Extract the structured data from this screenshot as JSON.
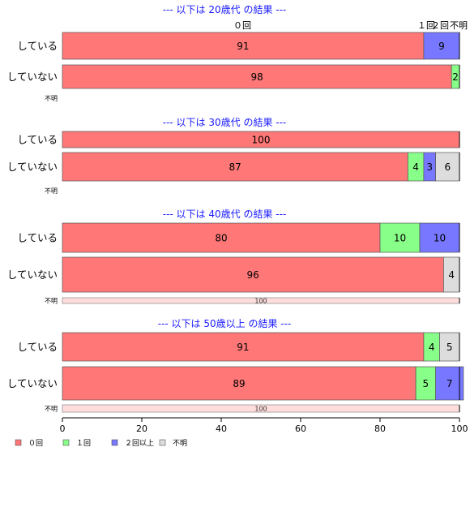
{
  "chart_data": {
    "type": "bar",
    "orientation": "horizontal",
    "stacked": true,
    "xlim": [
      0,
      100
    ],
    "x_ticks": [
      "0",
      "20",
      "40",
      "60",
      "80",
      "100"
    ],
    "legend": {
      "placement": "bottom-left",
      "items": [
        {
          "label": "０回",
          "color": "#ff7777"
        },
        {
          "label": "１回",
          "color": "#88ff88"
        },
        {
          "label": "２回以上",
          "color": "#7777ff"
        },
        {
          "label": "不明",
          "color": "#dddddd"
        }
      ]
    },
    "top_labels": [
      "０回",
      "１回",
      "２回以上",
      "不明"
    ],
    "top_labels_display": [
      "０回",
      "１回",
      "２回",
      "不明"
    ],
    "panels": [
      {
        "title": "--- 以下は 20歳代 の結果 ---",
        "rows": [
          {
            "label": "している",
            "values": [
              91,
              0,
              9,
              0
            ],
            "labels": [
              "91",
              "",
              "9",
              ""
            ]
          },
          {
            "label": "していない",
            "values": [
              98,
              2,
              0,
              0
            ],
            "labels": [
              "98",
              "2",
              "",
              ""
            ]
          },
          {
            "label": "不明",
            "small": true,
            "values": [],
            "labels": []
          }
        ]
      },
      {
        "title": "--- 以下は 30歳代 の結果 ---",
        "rows": [
          {
            "label": "している",
            "values": [
              100,
              0,
              0,
              0
            ],
            "labels": [
              "100",
              "",
              "",
              ""
            ]
          },
          {
            "label": "していない",
            "values": [
              87,
              4,
              3,
              6
            ],
            "labels": [
              "87",
              "4",
              "3",
              "6"
            ]
          },
          {
            "label": "不明",
            "small": true,
            "values": [],
            "labels": []
          }
        ]
      },
      {
        "title": "--- 以下は 40歳代 の結果 ---",
        "rows": [
          {
            "label": "している",
            "values": [
              80,
              10,
              10,
              0
            ],
            "labels": [
              "80",
              "10",
              "10",
              ""
            ]
          },
          {
            "label": "していない",
            "values": [
              96,
              0,
              0,
              4
            ],
            "labels": [
              "96",
              "",
              "",
              "4"
            ]
          },
          {
            "label": "不明",
            "small": true,
            "values": [
              100,
              0,
              0,
              0
            ],
            "labels": [
              "100",
              "",
              "",
              ""
            ]
          }
        ]
      },
      {
        "title": "--- 以下は 50歳以上 の結果 ---",
        "rows": [
          {
            "label": "している",
            "values": [
              91,
              4,
              0,
              5
            ],
            "labels": [
              "91",
              "4",
              "",
              "5"
            ]
          },
          {
            "label": "していない",
            "values": [
              89,
              5,
              7,
              0
            ],
            "labels": [
              "89",
              "5",
              "7",
              ""
            ]
          },
          {
            "label": "不明",
            "small": true,
            "values": [
              100,
              0,
              0,
              0
            ],
            "labels": [
              "100",
              "",
              "",
              ""
            ]
          }
        ]
      }
    ]
  }
}
